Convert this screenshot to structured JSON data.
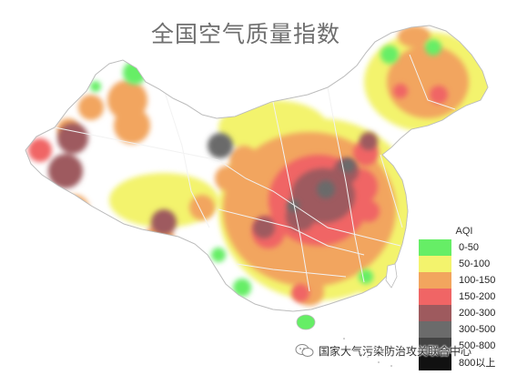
{
  "title": "全国空气质量指数",
  "legend": {
    "title": "AQI",
    "items": [
      {
        "label": "0-50",
        "color": "#66ee66"
      },
      {
        "label": "50-100",
        "color": "#f3f36d"
      },
      {
        "label": "100-150",
        "color": "#f2a55e"
      },
      {
        "label": "150-200",
        "color": "#f06565"
      },
      {
        "label": "200-300",
        "color": "#9e5a5e"
      },
      {
        "label": "300-500",
        "color": "#6b6b6b"
      },
      {
        "label": "500-800",
        "color": "#444444"
      },
      {
        "label": "800以上",
        "color": "#111111"
      }
    ]
  },
  "watermark": {
    "text": "国家大气污染防治攻关联合中心",
    "icon": "wechat-icon"
  },
  "colors": {
    "background": "#ffffff",
    "boundary": "#f0f0f0",
    "sea": "#ffffff"
  }
}
